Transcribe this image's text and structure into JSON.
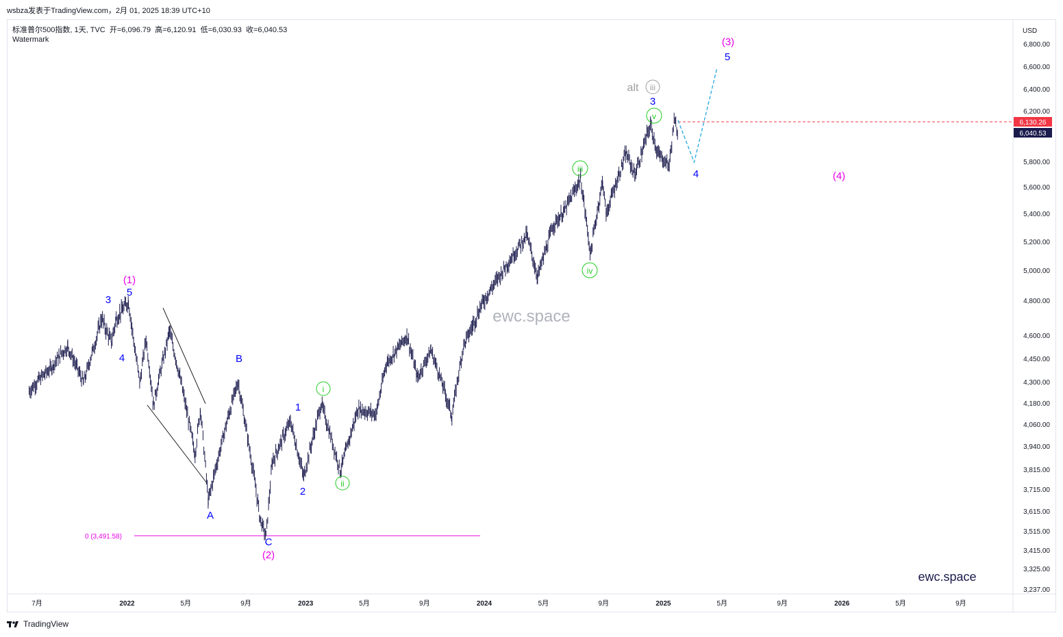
{
  "header": {
    "publisher_line": "wsbza发表于TradingView.com，2月 01, 2025 18:39 UTC+10"
  },
  "symbol_info": {
    "name": "标准普尔500指数",
    "interval": "1天",
    "source": "TVC",
    "open_label": "开=6,096.79",
    "high_label": "高=6,120.91",
    "low_label": "低=6,030.93",
    "close_label": "收=6,040.53"
  },
  "watermark_label": "Watermark",
  "center_watermark": "ewc.space",
  "brand_text": "ewc.space",
  "footer_brand": "TradingView",
  "colors": {
    "candles": "#1b1b4d",
    "wave_blue": "#0000ff",
    "wave_magenta": "#e800e8",
    "wave_green": "#22cc22",
    "alt_gray": "#9e9e9e",
    "projection": "#22a8e0",
    "price_red": "#f23645",
    "price_dark": "#1b1b4d"
  },
  "chart_data": {
    "type": "candlestick",
    "currency": "USD",
    "ylim": [
      3237,
      7000
    ],
    "y_ticks": [
      "6,800.00",
      "6,600.00",
      "6,400.00",
      "6,200.00",
      "5,800.00",
      "5,600.00",
      "5,400.00",
      "5,200.00",
      "5,000.00",
      "4,800.00",
      "4,600.00",
      "4,450.00",
      "4,300.00",
      "4,180.00",
      "4,060.00",
      "3,940.00",
      "3,815.00",
      "3,715.00",
      "3,615.00",
      "3,515.00",
      "3,415.00",
      "3,325.00",
      "3,237.00"
    ],
    "x_ticks": [
      "7月",
      "2022",
      "5月",
      "9月",
      "2023",
      "5月",
      "9月",
      "2024",
      "5月",
      "9月",
      "2025",
      "5月",
      "9月",
      "2026",
      "5月",
      "9月"
    ],
    "price_markers": [
      {
        "value": "6,130.26",
        "style": "red"
      },
      {
        "value": "6,040.53",
        "style": "dark"
      }
    ],
    "horizontal_level": {
      "label": "0 (3,491.58)",
      "value": 3491.58
    },
    "series": [
      {
        "name": "",
        "points": [
          [
            "2021-06-15",
            4250
          ],
          [
            "2021-07-05",
            4320
          ],
          [
            "2021-08-01",
            4400
          ],
          [
            "2021-08-15",
            4470
          ],
          [
            "2021-09-02",
            4530
          ],
          [
            "2021-10-04",
            4300
          ],
          [
            "2021-11-10",
            4700
          ],
          [
            "2021-11-30",
            4560
          ],
          [
            "2021-12-10",
            4700
          ],
          [
            "2022-01-04",
            4800
          ],
          [
            "2022-01-27",
            4300
          ],
          [
            "2022-02-09",
            4580
          ],
          [
            "2022-02-24",
            4170
          ],
          [
            "2022-03-29",
            4630
          ],
          [
            "2022-05-20",
            3900
          ],
          [
            "2022-05-31",
            4150
          ],
          [
            "2022-06-16",
            3660
          ],
          [
            "2022-07-29",
            4130
          ],
          [
            "2022-08-16",
            4305
          ],
          [
            "2022-09-30",
            3580
          ],
          [
            "2022-10-12",
            3491
          ],
          [
            "2022-10-25",
            3860
          ],
          [
            "2022-12-01",
            4080
          ],
          [
            "2022-12-28",
            3780
          ],
          [
            "2023-02-02",
            4180
          ],
          [
            "2023-03-13",
            3810
          ],
          [
            "2023-04-18",
            4150
          ],
          [
            "2023-05-25",
            4120
          ],
          [
            "2023-06-15",
            4420
          ],
          [
            "2023-07-27",
            4600
          ],
          [
            "2023-08-18",
            4330
          ],
          [
            "2023-09-14",
            4510
          ],
          [
            "2023-10-27",
            4110
          ],
          [
            "2023-11-20",
            4540
          ],
          [
            "2023-12-28",
            4790
          ],
          [
            "2024-03-28",
            5250
          ],
          [
            "2024-04-19",
            4960
          ],
          [
            "2024-05-21",
            5320
          ],
          [
            "2024-06-12",
            5420
          ],
          [
            "2024-07-16",
            5670
          ],
          [
            "2024-08-05",
            5120
          ],
          [
            "2024-08-30",
            5650
          ],
          [
            "2024-09-06",
            5400
          ],
          [
            "2024-10-17",
            5870
          ],
          [
            "2024-11-04",
            5700
          ],
          [
            "2024-12-06",
            6100
          ],
          [
            "2024-12-20",
            5870
          ],
          [
            "2025-01-13",
            5775
          ],
          [
            "2025-01-23",
            6120
          ],
          [
            "2025-01-31",
            6040
          ]
        ]
      },
      {
        "name": "",
        "points": [
          [
            "2025-01-31",
            6130
          ],
          [
            "2025-03-05",
            5800
          ],
          [
            "2025-04-20",
            6580
          ]
        ]
      }
    ],
    "wave_labels": [
      {
        "text": "(1)",
        "color": "magenta"
      },
      {
        "text": "5",
        "color": "blue"
      },
      {
        "text": "3",
        "color": "blue"
      },
      {
        "text": "4",
        "color": "blue"
      },
      {
        "text": "A",
        "color": "blue"
      },
      {
        "text": "B",
        "color": "blue"
      },
      {
        "text": "C",
        "color": "blue"
      },
      {
        "text": "(2)",
        "color": "magenta"
      },
      {
        "text": "1",
        "color": "blue"
      },
      {
        "text": "2",
        "color": "blue"
      },
      {
        "text": "i",
        "color": "green"
      },
      {
        "text": "ii",
        "color": "green"
      },
      {
        "text": "iii",
        "color": "green"
      },
      {
        "text": "iv",
        "color": "green"
      },
      {
        "text": "v",
        "color": "green"
      },
      {
        "text": "3",
        "color": "blue"
      },
      {
        "text": "alt",
        "color": "gray"
      },
      {
        "text": "iii",
        "color": "gray"
      },
      {
        "text": "4",
        "color": "blue"
      },
      {
        "text": "5",
        "color": "blue"
      },
      {
        "text": "(3)",
        "color": "magenta"
      },
      {
        "text": "(4)",
        "color": "magenta"
      }
    ]
  }
}
